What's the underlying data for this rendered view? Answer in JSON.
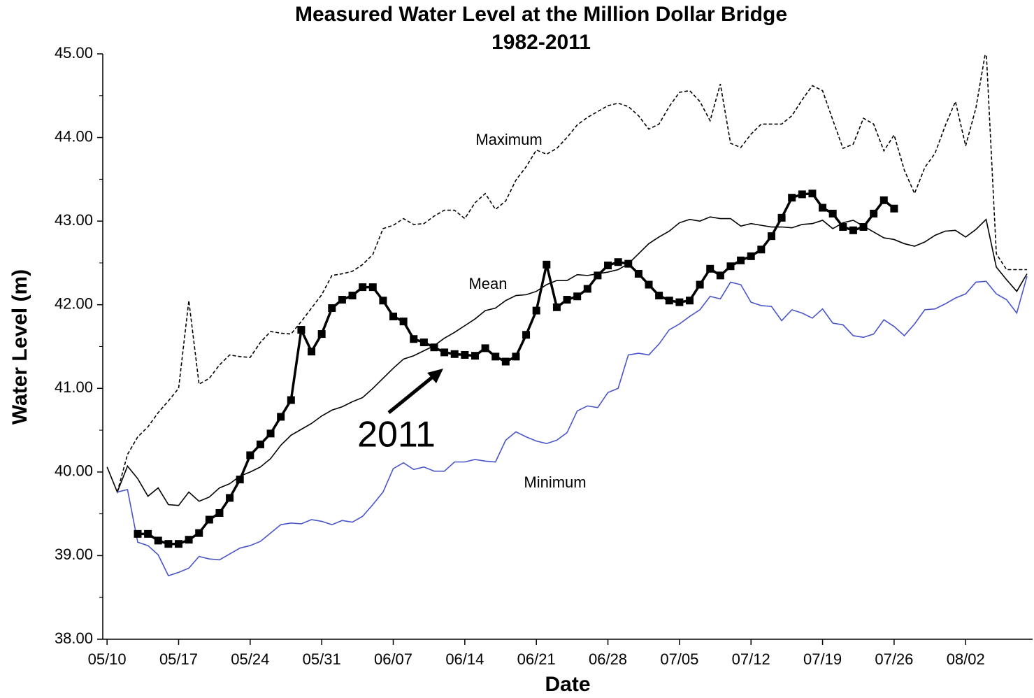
{
  "chart_data": {
    "type": "line",
    "title": "Measured Water Level at the Million Dollar Bridge",
    "subtitle": "1982-2011",
    "x_label": "Date",
    "y_label": "Water Level (m)",
    "x": [
      0,
      1,
      2,
      3,
      4,
      5,
      6,
      7,
      8,
      9,
      10,
      11,
      12,
      13,
      14,
      15,
      16,
      17,
      18,
      19,
      20,
      21,
      22,
      23,
      24,
      25,
      26,
      27,
      28,
      29,
      30,
      31,
      32,
      33,
      34,
      35,
      36,
      37,
      38,
      39,
      40,
      41,
      42,
      43,
      44,
      45,
      46,
      47,
      48,
      49,
      50,
      51,
      52,
      53,
      54,
      55,
      56,
      57,
      58,
      59,
      60,
      61,
      62,
      63,
      64,
      65,
      66,
      67,
      68,
      69,
      70,
      71,
      72,
      73,
      74,
      75,
      76,
      77,
      78,
      79,
      80,
      81,
      82,
      83,
      84,
      85,
      86,
      87,
      88,
      89,
      90
    ],
    "xlim": [
      -0.42,
      90.55
    ],
    "xticks": [
      {
        "value": 0,
        "label": "05/10"
      },
      {
        "value": 7,
        "label": "05/17"
      },
      {
        "value": 14,
        "label": "05/24"
      },
      {
        "value": 21,
        "label": "05/31"
      },
      {
        "value": 28,
        "label": "06/07"
      },
      {
        "value": 35,
        "label": "06/14"
      },
      {
        "value": 42,
        "label": "06/21"
      },
      {
        "value": 49,
        "label": "06/28"
      },
      {
        "value": 56,
        "label": "07/05"
      },
      {
        "value": 63,
        "label": "07/12"
      },
      {
        "value": 70,
        "label": "07/19"
      },
      {
        "value": 77,
        "label": "07/26"
      },
      {
        "value": 84,
        "label": "08/02"
      }
    ],
    "ylim": [
      38,
      45
    ],
    "yticks": [
      {
        "value": 38,
        "label": "38.00"
      },
      {
        "value": 39,
        "label": "39.00"
      },
      {
        "value": 40,
        "label": "40.00"
      },
      {
        "value": 41,
        "label": "41.00"
      },
      {
        "value": 42,
        "label": "42.00"
      },
      {
        "value": 43,
        "label": "43.00"
      },
      {
        "value": 44,
        "label": "44.00"
      },
      {
        "value": 45,
        "label": "45.00"
      }
    ],
    "grid": false,
    "series": [
      {
        "name": "Maximum",
        "color": "#000000",
        "dash": true,
        "marker": "none",
        "values": [
          null,
          39.76,
          40.21,
          40.42,
          40.54,
          40.71,
          40.85,
          41.0,
          42.05,
          41.05,
          41.12,
          41.28,
          41.4,
          41.38,
          41.37,
          41.55,
          41.68,
          41.66,
          41.65,
          41.8,
          41.96,
          42.12,
          42.35,
          42.37,
          42.4,
          42.48,
          42.6,
          42.91,
          42.95,
          43.03,
          42.96,
          42.97,
          43.06,
          43.13,
          43.13,
          43.03,
          43.22,
          43.33,
          43.14,
          43.24,
          43.49,
          43.65,
          43.85,
          43.8,
          43.87,
          44.0,
          44.15,
          44.24,
          44.31,
          44.38,
          44.41,
          44.37,
          44.26,
          44.1,
          44.16,
          44.37,
          44.54,
          44.56,
          44.43,
          44.2,
          44.64,
          43.93,
          43.88,
          44.04,
          44.16,
          44.16,
          44.16,
          44.26,
          44.45,
          44.62,
          44.56,
          44.21,
          43.87,
          43.92,
          44.23,
          44.16,
          43.84,
          44.03,
          43.61,
          43.33,
          43.64,
          43.81,
          44.14,
          44.43,
          43.9,
          44.35,
          45.06,
          42.61,
          42.42,
          42.42,
          42.42
        ]
      },
      {
        "name": "Mean",
        "color": "#000000",
        "dash": false,
        "marker": "none",
        "values": [
          40.06,
          39.76,
          40.07,
          39.92,
          39.71,
          39.81,
          39.61,
          39.6,
          39.76,
          39.65,
          39.7,
          39.81,
          39.86,
          39.95,
          40.0,
          40.06,
          40.16,
          40.32,
          40.44,
          40.51,
          40.58,
          40.67,
          40.74,
          40.78,
          40.84,
          40.89,
          41.0,
          41.12,
          41.24,
          41.35,
          41.39,
          41.45,
          41.51,
          41.6,
          41.67,
          41.75,
          41.83,
          41.93,
          41.96,
          42.05,
          42.11,
          42.12,
          42.16,
          42.24,
          42.29,
          42.29,
          42.36,
          42.35,
          42.37,
          42.39,
          42.42,
          42.49,
          42.61,
          42.73,
          42.81,
          42.88,
          42.98,
          43.02,
          43.0,
          43.05,
          43.03,
          43.03,
          42.94,
          42.97,
          42.95,
          42.93,
          42.93,
          42.92,
          42.96,
          42.97,
          43.01,
          42.91,
          42.98,
          43.01,
          42.94,
          42.87,
          42.8,
          42.78,
          42.73,
          42.7,
          42.75,
          42.83,
          42.88,
          42.89,
          42.81,
          42.9,
          43.02,
          42.45,
          42.3,
          42.16,
          42.37
        ]
      },
      {
        "name": "Minimum",
        "color": "#4a55c8",
        "dash": false,
        "marker": "none",
        "values": [
          null,
          39.76,
          39.79,
          39.16,
          39.12,
          39.01,
          38.76,
          38.8,
          38.85,
          38.99,
          38.96,
          38.95,
          39.02,
          39.09,
          39.12,
          39.17,
          39.27,
          39.37,
          39.39,
          39.38,
          39.43,
          39.41,
          39.37,
          39.42,
          39.4,
          39.47,
          39.61,
          39.76,
          40.04,
          40.11,
          40.03,
          40.06,
          40.01,
          40.01,
          40.12,
          40.12,
          40.15,
          40.13,
          40.12,
          40.38,
          40.48,
          40.42,
          40.37,
          40.34,
          40.38,
          40.47,
          40.73,
          40.79,
          40.77,
          40.95,
          41.0,
          41.4,
          41.42,
          41.4,
          41.53,
          41.7,
          41.77,
          41.86,
          41.94,
          42.1,
          42.07,
          42.27,
          42.24,
          42.03,
          41.99,
          41.98,
          41.81,
          41.94,
          41.9,
          41.84,
          41.95,
          41.78,
          41.76,
          41.63,
          41.61,
          41.65,
          41.82,
          41.74,
          41.63,
          41.77,
          41.94,
          41.95,
          42.01,
          42.08,
          42.13,
          42.27,
          42.28,
          42.13,
          42.06,
          41.9,
          42.34
        ]
      },
      {
        "name": "2011",
        "color": "#000000",
        "dash": false,
        "marker": "square",
        "values": [
          null,
          null,
          null,
          39.26,
          39.26,
          39.18,
          39.14,
          39.14,
          39.19,
          39.27,
          39.43,
          39.51,
          39.69,
          39.91,
          40.2,
          40.33,
          40.46,
          40.66,
          40.86,
          41.7,
          41.44,
          41.65,
          41.96,
          42.06,
          42.11,
          42.21,
          42.21,
          42.05,
          41.86,
          41.8,
          41.59,
          41.55,
          41.49,
          41.43,
          41.41,
          41.4,
          41.39,
          41.48,
          41.38,
          41.32,
          41.38,
          41.64,
          41.93,
          42.48,
          41.97,
          42.06,
          42.1,
          42.19,
          42.35,
          42.47,
          42.51,
          42.49,
          42.37,
          42.24,
          42.11,
          42.05,
          42.03,
          42.05,
          42.24,
          42.43,
          42.35,
          42.46,
          42.53,
          42.58,
          42.66,
          42.82,
          43.04,
          43.28,
          43.32,
          43.33,
          43.16,
          43.09,
          42.93,
          42.89,
          42.93,
          43.09,
          43.25,
          43.15,
          null,
          null,
          null,
          null,
          null,
          null,
          null,
          null,
          null,
          null,
          null,
          null,
          null
        ]
      }
    ]
  }
}
